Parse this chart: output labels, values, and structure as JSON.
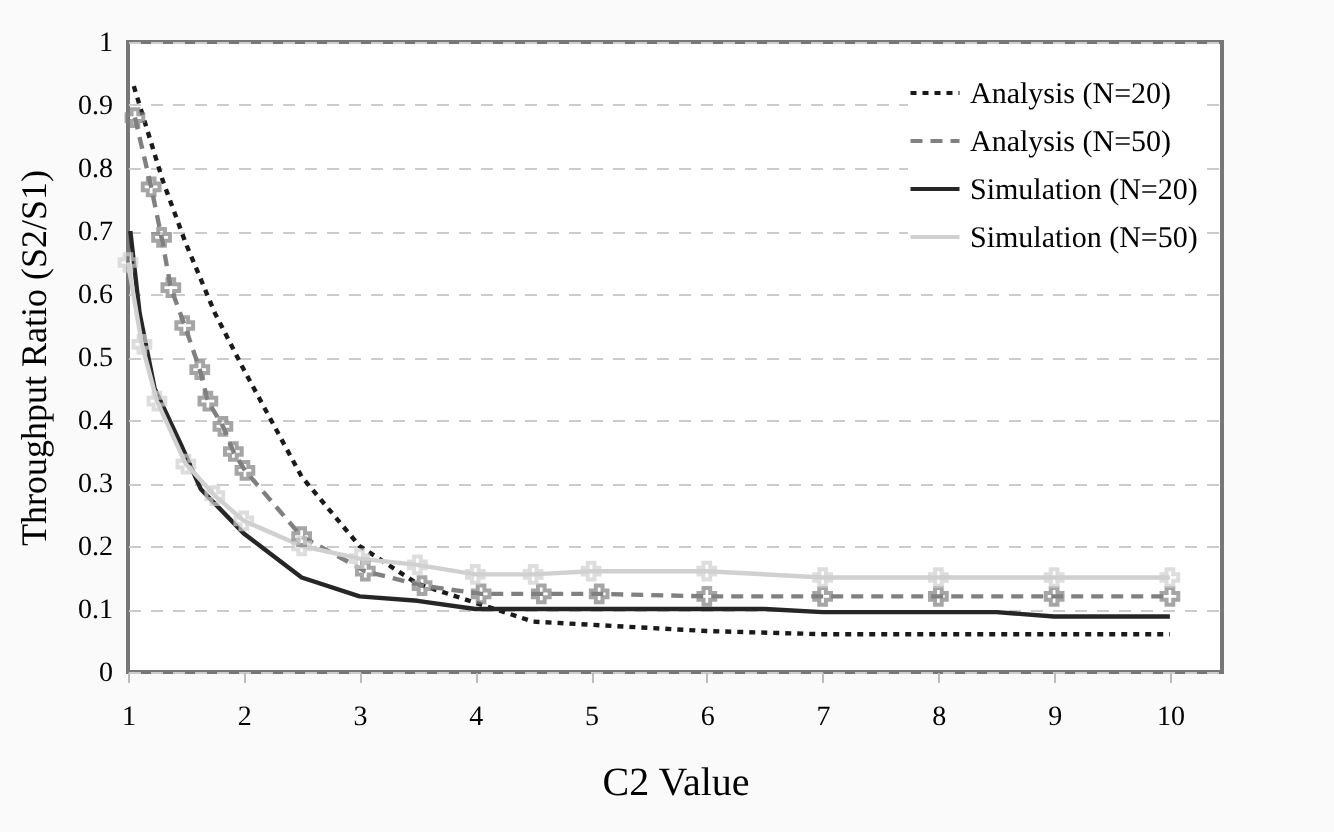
{
  "chart_data": {
    "type": "line",
    "xlabel": "C2 Value",
    "ylabel": "Throughput Ratio (S2/S1)",
    "xlim": [
      1,
      10.45
    ],
    "xticks": [
      1,
      2,
      3,
      4,
      5,
      6,
      7,
      8,
      9,
      10
    ],
    "ylim": [
      0,
      1
    ],
    "yticks": [
      0,
      0.1,
      0.2,
      0.3,
      0.4,
      0.5,
      0.6,
      0.7,
      0.8,
      0.9,
      1
    ],
    "grid": "y",
    "legend": "top right",
    "series": [
      {
        "name": "Analysis (N=20)",
        "color": "#1a1a1a",
        "line_style": "dotted",
        "marker": "none",
        "x": [
          1.05,
          1.3,
          1.5,
          1.75,
          2,
          2.5,
          3,
          3.5,
          4,
          4.5,
          5,
          6,
          7,
          8,
          9,
          10
        ],
        "values": [
          0.93,
          0.78,
          0.68,
          0.57,
          0.48,
          0.31,
          0.2,
          0.14,
          0.11,
          0.08,
          0.075,
          0.065,
          0.06,
          0.06,
          0.06,
          0.06
        ]
      },
      {
        "name": "Analysis (N=50)",
        "color": "#808080",
        "line_style": "dashed",
        "marker": "cross",
        "x": [
          1.06,
          1.2,
          1.29,
          1.37,
          1.49,
          1.62,
          1.69,
          1.82,
          1.91,
          2.01,
          2.5,
          3.05,
          3.54,
          4.05,
          4.57,
          5.07,
          6,
          7,
          8,
          9,
          10
        ],
        "values": [
          0.88,
          0.77,
          0.69,
          0.61,
          0.55,
          0.48,
          0.43,
          0.39,
          0.35,
          0.32,
          0.215,
          0.16,
          0.137,
          0.124,
          0.124,
          0.124,
          0.12,
          0.12,
          0.12,
          0.12,
          0.12
        ]
      },
      {
        "name": "Simulation (N=20)",
        "color": "#262626",
        "line_style": "solid",
        "marker": "none",
        "x": [
          1.02,
          1.1,
          1.23,
          1.46,
          1.63,
          2,
          2.5,
          3,
          3.5,
          4,
          5,
          6.5,
          7,
          8.5,
          9,
          10
        ],
        "values": [
          0.7,
          0.57,
          0.45,
          0.36,
          0.29,
          0.22,
          0.15,
          0.12,
          0.113,
          0.1,
          0.1,
          0.1,
          0.095,
          0.095,
          0.088,
          0.088
        ]
      },
      {
        "name": "Simulation (N=50)",
        "color": "#d0d0d0",
        "line_style": "solid",
        "marker": "cross",
        "x": [
          1,
          1.12,
          1.25,
          1.5,
          1.75,
          2,
          2.5,
          3,
          3.5,
          4,
          4.5,
          5,
          6,
          7,
          8,
          9,
          10
        ],
        "values": [
          0.65,
          0.52,
          0.43,
          0.33,
          0.28,
          0.24,
          0.2,
          0.18,
          0.17,
          0.155,
          0.155,
          0.16,
          0.16,
          0.15,
          0.15,
          0.15,
          0.15
        ]
      }
    ]
  }
}
